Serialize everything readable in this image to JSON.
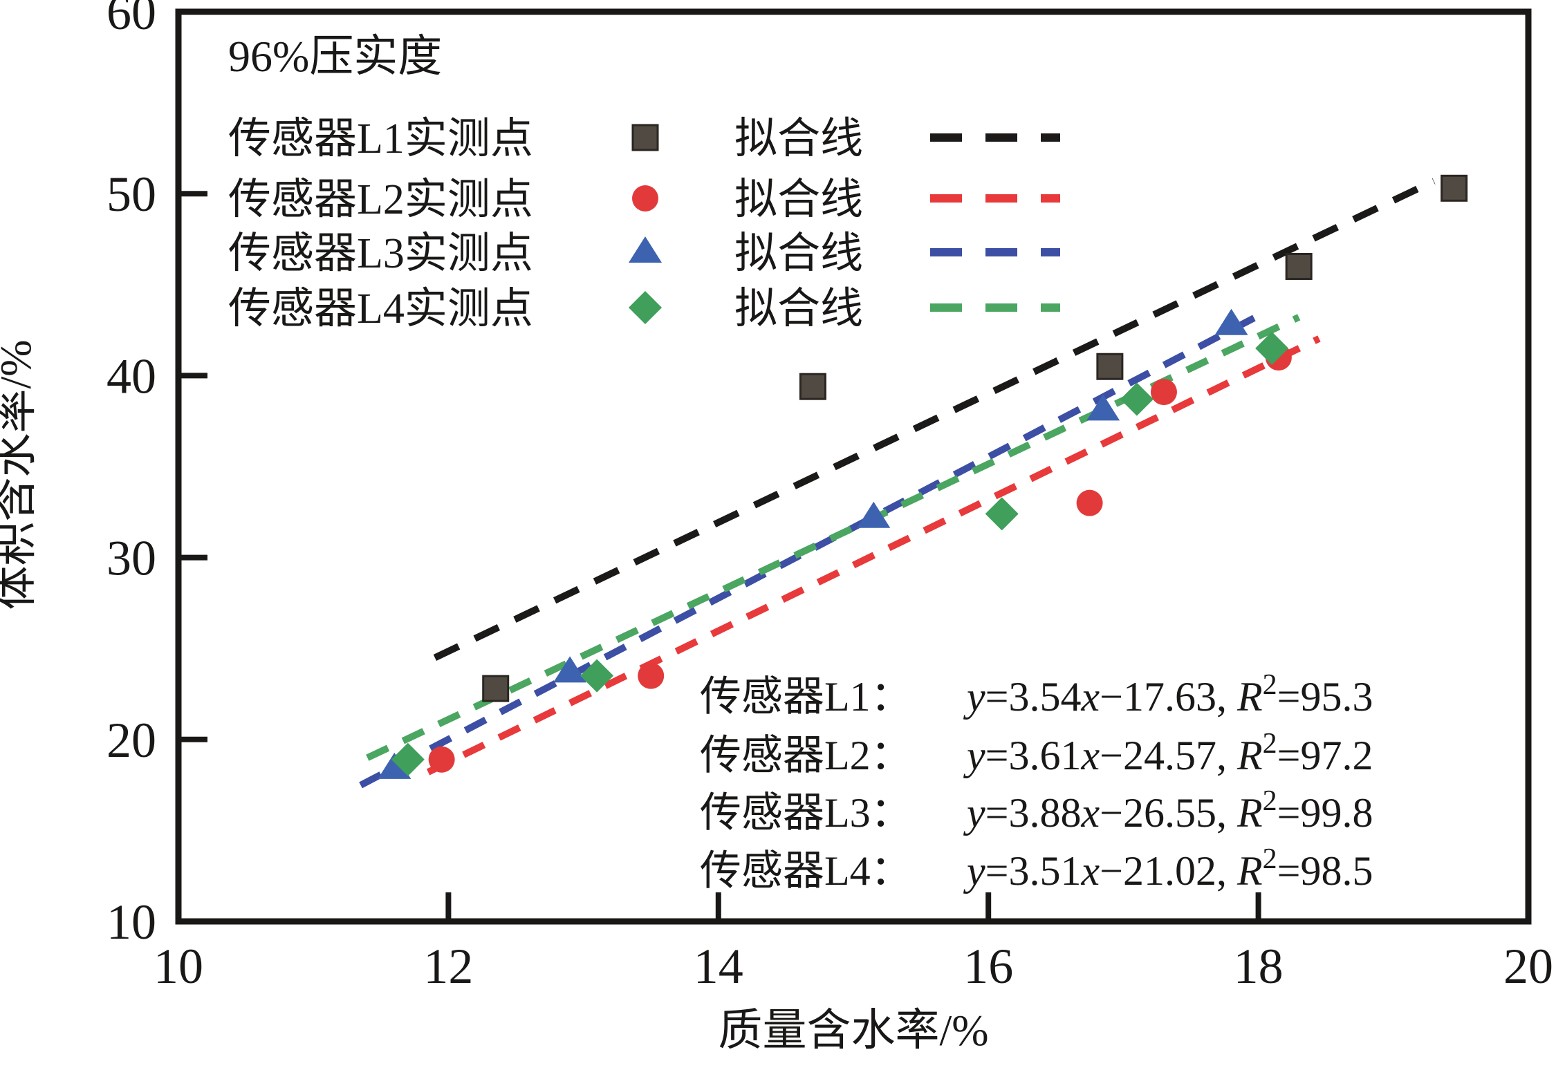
{
  "figure": {
    "background": "#ffffff",
    "frame_color": "#1a1816"
  },
  "chart_data": {
    "type": "scatter",
    "annotation": "96%压实度",
    "xlabel": "质量含水率/%",
    "ylabel": "体积含水率/%",
    "xlim": [
      10,
      20
    ],
    "ylim": [
      10,
      60
    ],
    "xticks": [
      10,
      12,
      14,
      16,
      18,
      20
    ],
    "yticks": [
      10,
      20,
      30,
      40,
      50,
      60
    ],
    "grid": false,
    "legend_position": "upper-left-inside",
    "series": [
      {
        "id": "L1",
        "point_label": "传感器L1实测点",
        "line_label": "拟合线",
        "marker": "square",
        "marker_color": "#514a42",
        "marker_edge": "#2b2622",
        "line_color": "#1c1a18",
        "points": [
          [
            12.35,
            22.8
          ],
          [
            14.7,
            39.4
          ],
          [
            16.9,
            40.5
          ],
          [
            18.3,
            46.0
          ],
          [
            19.45,
            50.3
          ]
        ],
        "fit": {
          "slope": 3.54,
          "intercept": -17.63,
          "r2": 95.3,
          "x_range": [
            11.9,
            19.3
          ]
        },
        "equation": {
          "label": "传感器L1：",
          "formula": "y=3.54x−17.63, R²=95.3"
        }
      },
      {
        "id": "L2",
        "point_label": "传感器L2实测点",
        "line_label": "拟合线",
        "marker": "circle",
        "marker_color": "#e23a3b",
        "marker_edge": "#e23a3b",
        "line_color": "#e8393b",
        "points": [
          [
            11.95,
            18.9
          ],
          [
            13.5,
            23.5
          ],
          [
            16.75,
            33.0
          ],
          [
            17.3,
            39.1
          ],
          [
            18.15,
            41.0
          ]
        ],
        "fit": {
          "slope": 3.61,
          "intercept": -24.57,
          "r2": 97.2,
          "x_range": [
            11.85,
            18.45
          ]
        },
        "equation": {
          "label": "传感器L2：",
          "formula": "y=3.61x−24.57, R²=97.2"
        }
      },
      {
        "id": "L3",
        "point_label": "传感器L3实测点",
        "line_label": "拟合线",
        "marker": "triangle",
        "marker_color": "#3d63b0",
        "marker_edge": "#3d63b0",
        "line_color": "#3c4fa4",
        "points": [
          [
            11.6,
            18.4
          ],
          [
            12.9,
            23.7
          ],
          [
            15.15,
            32.2
          ],
          [
            16.85,
            38.1
          ],
          [
            17.8,
            42.8
          ]
        ],
        "fit": {
          "slope": 3.88,
          "intercept": -26.55,
          "r2": 99.8,
          "x_range": [
            11.35,
            18.0
          ]
        },
        "equation": {
          "label": "传感器L3：",
          "formula": "y=3.88x−26.55, R²=99.8"
        }
      },
      {
        "id": "L4",
        "point_label": "传感器L4实测点",
        "line_label": "拟合线",
        "marker": "diamond",
        "marker_color": "#3f9f5b",
        "marker_edge": "#3f9f5b",
        "line_color": "#4aa661",
        "points": [
          [
            11.7,
            18.9
          ],
          [
            13.1,
            23.5
          ],
          [
            16.1,
            32.4
          ],
          [
            17.1,
            38.7
          ],
          [
            18.1,
            41.5
          ]
        ],
        "fit": {
          "slope": 3.51,
          "intercept": -21.02,
          "r2": 98.5,
          "x_range": [
            11.4,
            18.3
          ]
        },
        "equation": {
          "label": "传感器L4：",
          "formula": "y=3.51x−21.02, R²=98.5"
        }
      }
    ]
  }
}
